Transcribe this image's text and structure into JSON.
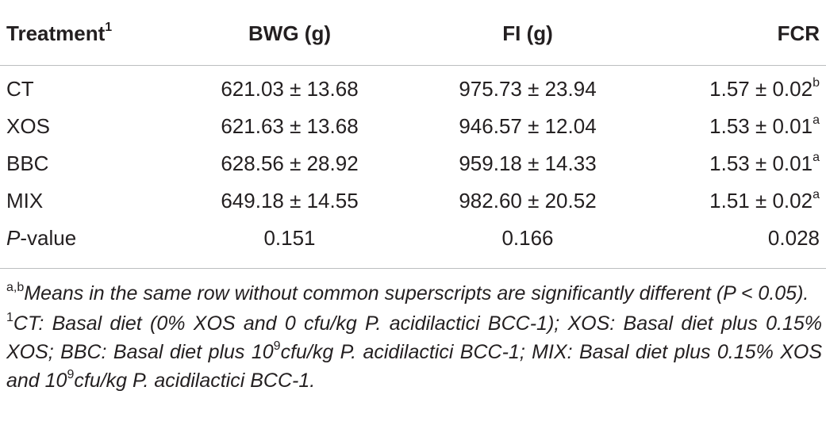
{
  "table": {
    "headers": {
      "treatment": "Treatment",
      "treatment_sup": "1",
      "bwg": "BWG (g)",
      "fi": "FI (g)",
      "fcr": "FCR"
    },
    "rows": [
      {
        "treatment": "CT",
        "bwg": "621.03 ± 13.68",
        "fi": "975.73 ± 23.94",
        "fcr": "1.57 ± 0.02",
        "fcr_sup": "b"
      },
      {
        "treatment": "XOS",
        "bwg": "621.63 ± 13.68",
        "fi": "946.57 ± 12.04",
        "fcr": "1.53 ± 0.01",
        "fcr_sup": "a"
      },
      {
        "treatment": "BBC",
        "bwg": "628.56 ± 28.92",
        "fi": "959.18 ± 14.33",
        "fcr": "1.53 ± 0.01",
        "fcr_sup": "a"
      },
      {
        "treatment": "MIX",
        "bwg": "649.18 ± 14.55",
        "fi": "982.60 ± 20.52",
        "fcr": "1.51 ± 0.02",
        "fcr_sup": "a"
      }
    ],
    "pvalue_row": {
      "label_italic": "P",
      "label_rest": "-value",
      "bwg": "0.151",
      "fi": "0.166",
      "fcr": "0.028"
    }
  },
  "footnotes": {
    "fn_ab_sup": "a,b",
    "fn_ab_text": "Means in the same row without common superscripts are significantly different (P < 0.05).",
    "fn1_sup": "1",
    "fn1_part1": "CT: Basal diet (0% XOS and 0 cfu/kg P. acidilactici BCC-1); XOS: Basal diet plus 0.15% XOS; BBC: Basal diet plus 10",
    "fn1_exp1": "9",
    "fn1_part2": "cfu/kg P. acidilactici BCC-1; MIX: Basal diet plus 0.15% XOS and 10",
    "fn1_exp2": "9",
    "fn1_part3": "cfu/kg P. acidilactici BCC-1."
  }
}
